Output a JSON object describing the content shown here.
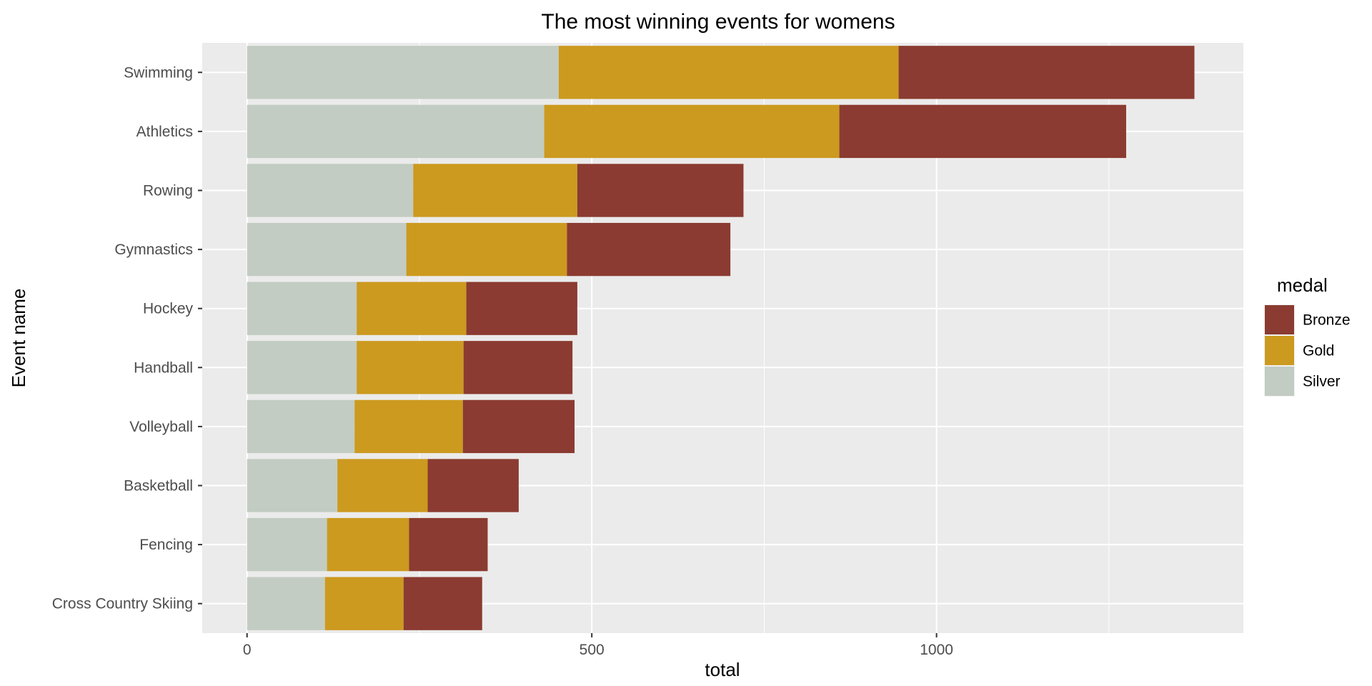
{
  "chart_data": {
    "type": "bar",
    "orientation": "horizontal",
    "stacked": true,
    "title": "The most winning events for womens",
    "xlabel": "total",
    "ylabel": "Event name",
    "xlim": [
      -65,
      1445
    ],
    "xticks": [
      0,
      500,
      1000
    ],
    "grid": true,
    "categories": [
      "Swimming",
      "Athletics",
      "Rowing",
      "Gymnastics",
      "Hockey",
      "Handball",
      "Volleyball",
      "Basketball",
      "Fencing",
      "Cross Country Skiing"
    ],
    "series": [
      {
        "name": "Silver",
        "color": "#c2ccc2",
        "values": [
          452,
          431,
          241,
          231,
          159,
          159,
          156,
          131,
          116,
          113
        ]
      },
      {
        "name": "Gold",
        "color": "#cc9a1f",
        "values": [
          493,
          428,
          238,
          233,
          159,
          155,
          157,
          131,
          119,
          114
        ]
      },
      {
        "name": "Bronze",
        "color": "#8b3b31",
        "values": [
          429,
          416,
          241,
          237,
          161,
          158,
          162,
          132,
          114,
          114
        ]
      }
    ],
    "legend": {
      "title": "medal",
      "position": "right",
      "items": [
        {
          "name": "Bronze",
          "color": "#8b3b31"
        },
        {
          "name": "Gold",
          "color": "#cc9a1f"
        },
        {
          "name": "Silver",
          "color": "#c2ccc2"
        }
      ]
    }
  }
}
